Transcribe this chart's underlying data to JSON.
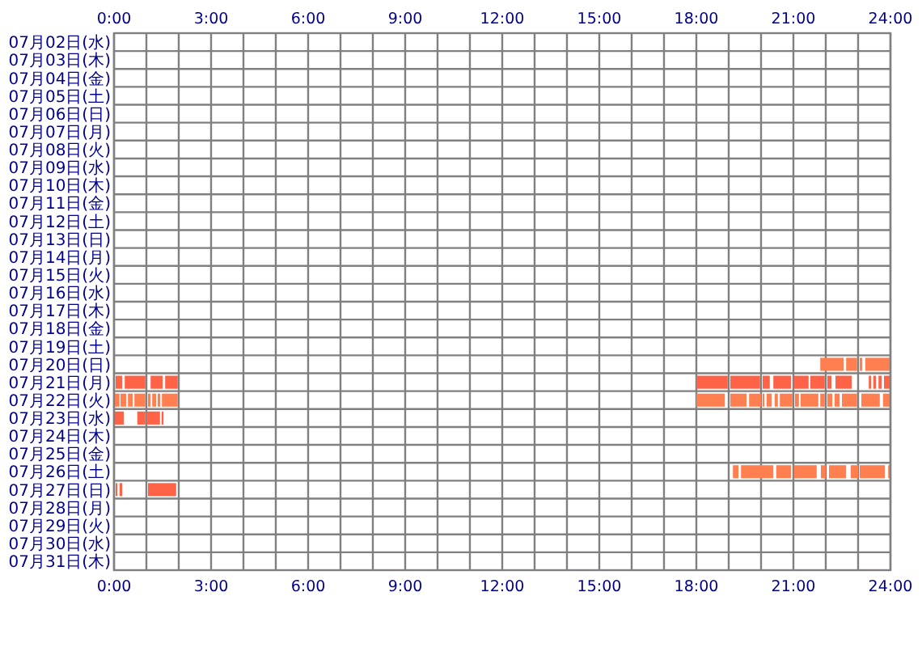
{
  "chart_data": {
    "type": "bar",
    "orientation": "horizontal",
    "grid": true,
    "categories": [
      "07月02日(水)",
      "07月03日(木)",
      "07月04日(金)",
      "07月05日(土)",
      "07月06日(日)",
      "07月07日(月)",
      "07月08日(火)",
      "07月09日(水)",
      "07月10日(木)",
      "07月11日(金)",
      "07月12日(土)",
      "07月13日(日)",
      "07月14日(月)",
      "07月15日(火)",
      "07月16日(水)",
      "07月17日(木)",
      "07月18日(金)",
      "07月19日(土)",
      "07月20日(日)",
      "07月21日(月)",
      "07月22日(火)",
      "07月23日(水)",
      "07月24日(木)",
      "07月25日(金)",
      "07月26日(土)",
      "07月27日(日)",
      "07月28日(月)",
      "07月29日(火)",
      "07月30日(水)",
      "07月31日(木)"
    ],
    "xlim": [
      0,
      24
    ],
    "xticks": [
      {
        "value": 0,
        "label": "0:00"
      },
      {
        "value": 1,
        "label": null
      },
      {
        "value": 2,
        "label": null
      },
      {
        "value": 3,
        "label": "3:00"
      },
      {
        "value": 4,
        "label": null
      },
      {
        "value": 5,
        "label": null
      },
      {
        "value": 6,
        "label": "6:00"
      },
      {
        "value": 7,
        "label": null
      },
      {
        "value": 8,
        "label": null
      },
      {
        "value": 9,
        "label": "9:00"
      },
      {
        "value": 10,
        "label": null
      },
      {
        "value": 11,
        "label": null
      },
      {
        "value": 12,
        "label": "12:00"
      },
      {
        "value": 13,
        "label": null
      },
      {
        "value": 14,
        "label": null
      },
      {
        "value": 15,
        "label": "15:00"
      },
      {
        "value": 16,
        "label": null
      },
      {
        "value": 17,
        "label": null
      },
      {
        "value": 18,
        "label": "18:00"
      },
      {
        "value": 19,
        "label": null
      },
      {
        "value": 20,
        "label": null
      },
      {
        "value": 21,
        "label": "21:00"
      },
      {
        "value": 22,
        "label": null
      },
      {
        "value": 23,
        "label": null
      },
      {
        "value": 24,
        "label": "24:00"
      }
    ],
    "x2lim": [
      0,
      24
    ],
    "x2ticks": [
      {
        "value": 0,
        "label": "0:00"
      },
      {
        "value": 3,
        "label": "3:00"
      },
      {
        "value": 6,
        "label": "6:00"
      },
      {
        "value": 9,
        "label": "9:00"
      },
      {
        "value": 12,
        "label": "12:00"
      },
      {
        "value": 15,
        "label": "15:00"
      },
      {
        "value": 18,
        "label": "18:00"
      },
      {
        "value": 21,
        "label": "21:00"
      },
      {
        "value": 24,
        "label": "24:00"
      }
    ],
    "series": [
      {
        "base": [
          null,
          null,
          null,
          null,
          null,
          null,
          null,
          null,
          null,
          null,
          null,
          null,
          null,
          null,
          null,
          null,
          null,
          null,
          21.83,
          0.05,
          0,
          0.02,
          null,
          null,
          19.13,
          0.05,
          null,
          null,
          null,
          null
        ],
        "values": [
          null,
          null,
          null,
          null,
          null,
          null,
          null,
          null,
          null,
          null,
          null,
          null,
          null,
          null,
          null,
          null,
          null,
          null,
          0.72,
          0.2,
          0.17,
          0.28,
          null,
          null,
          0.17,
          0.05,
          null,
          null,
          null,
          null
        ],
        "colors": [
          null,
          null,
          null,
          null,
          null,
          null,
          null,
          null,
          null,
          null,
          null,
          null,
          null,
          null,
          null,
          null,
          null,
          null,
          "#ff7f50",
          "#ff6347",
          "#ff7f50",
          "#ff6347",
          null,
          null,
          "#ff7f50",
          "#ff6347",
          null,
          null,
          null,
          null
        ]
      },
      {
        "base": [
          null,
          null,
          null,
          null,
          null,
          null,
          null,
          null,
          null,
          null,
          null,
          null,
          null,
          null,
          null,
          null,
          null,
          null,
          22.63,
          0.33,
          0.2,
          0.72,
          null,
          null,
          19.38,
          0.17,
          null,
          null,
          null,
          null
        ],
        "values": [
          null,
          null,
          null,
          null,
          null,
          null,
          null,
          null,
          null,
          null,
          null,
          null,
          null,
          null,
          null,
          null,
          null,
          null,
          0.34,
          0.64,
          0.18,
          0.25,
          null,
          null,
          1.0,
          0.08,
          null,
          null,
          null,
          null
        ],
        "colors": [
          null,
          null,
          null,
          null,
          null,
          null,
          null,
          null,
          null,
          null,
          null,
          null,
          null,
          null,
          null,
          null,
          null,
          null,
          "#ff7f50",
          "#ff6347",
          "#ff7f50",
          "#ff6347",
          null,
          null,
          "#ff7f50",
          "#ff6347",
          null,
          null,
          null,
          null
        ]
      },
      {
        "base": [
          null,
          null,
          null,
          null,
          null,
          null,
          null,
          null,
          null,
          null,
          null,
          null,
          null,
          null,
          null,
          null,
          null,
          null,
          23.05,
          1.13,
          0.43,
          1.0,
          null,
          null,
          20.47,
          1.05,
          null,
          null,
          null,
          null
        ],
        "values": [
          null,
          null,
          null,
          null,
          null,
          null,
          null,
          null,
          null,
          null,
          null,
          null,
          null,
          null,
          null,
          null,
          null,
          null,
          0.08,
          0.37,
          0.15,
          0.42,
          null,
          null,
          0.46,
          0.87,
          null,
          null,
          null,
          null
        ],
        "colors": [
          null,
          null,
          null,
          null,
          null,
          null,
          null,
          null,
          null,
          null,
          null,
          null,
          null,
          null,
          null,
          null,
          null,
          null,
          "#ff7f50",
          "#ff6347",
          "#ff7f50",
          "#ff6347",
          null,
          null,
          "#ff7f50",
          "#ff6347",
          null,
          null,
          null,
          null
        ]
      },
      {
        "base": [
          null,
          null,
          null,
          null,
          null,
          null,
          null,
          null,
          null,
          null,
          null,
          null,
          null,
          null,
          null,
          null,
          null,
          null,
          23.22,
          1.58,
          0.63,
          1.47,
          null,
          null,
          21.02,
          null,
          null,
          null,
          null,
          null
        ],
        "values": [
          null,
          null,
          null,
          null,
          null,
          null,
          null,
          null,
          null,
          null,
          null,
          null,
          null,
          null,
          null,
          null,
          null,
          null,
          0.78,
          0.39,
          0.34,
          0.06,
          null,
          null,
          0.7,
          null,
          null,
          null,
          null,
          null
        ],
        "colors": [
          null,
          null,
          null,
          null,
          null,
          null,
          null,
          null,
          null,
          null,
          null,
          null,
          null,
          null,
          null,
          null,
          null,
          null,
          "#ff7f50",
          "#ff6347",
          "#ff7f50",
          "#ff6347",
          null,
          null,
          "#ff7f50",
          null,
          null,
          null,
          null,
          null
        ]
      },
      {
        "base": [
          null,
          null,
          null,
          null,
          null,
          null,
          null,
          null,
          null,
          null,
          null,
          null,
          null,
          null,
          null,
          null,
          null,
          null,
          null,
          18,
          1.05,
          null,
          null,
          null,
          21.85,
          null,
          null,
          null,
          null,
          null
        ],
        "values": [
          null,
          null,
          null,
          null,
          null,
          null,
          null,
          null,
          null,
          null,
          null,
          null,
          null,
          null,
          null,
          null,
          null,
          null,
          null,
          0.97,
          0.08,
          null,
          null,
          null,
          0.15,
          null,
          null,
          null,
          null,
          null
        ],
        "colors": [
          null,
          null,
          null,
          null,
          null,
          null,
          null,
          null,
          null,
          null,
          null,
          null,
          null,
          null,
          null,
          null,
          null,
          null,
          null,
          "#ff6347",
          "#ff7f50",
          null,
          null,
          null,
          "#ff7f50",
          null,
          null,
          null,
          null,
          null
        ]
      },
      {
        "base": [
          null,
          null,
          null,
          null,
          null,
          null,
          null,
          null,
          null,
          null,
          null,
          null,
          null,
          null,
          null,
          null,
          null,
          null,
          null,
          19.05,
          1.18,
          null,
          null,
          null,
          22.1,
          null,
          null,
          null,
          null,
          null
        ],
        "values": [
          null,
          null,
          null,
          null,
          null,
          null,
          null,
          null,
          null,
          null,
          null,
          null,
          null,
          null,
          null,
          null,
          null,
          null,
          null,
          0.92,
          0.12,
          null,
          null,
          null,
          0.53,
          null,
          null,
          null,
          null,
          null
        ],
        "colors": [
          null,
          null,
          null,
          null,
          null,
          null,
          null,
          null,
          null,
          null,
          null,
          null,
          null,
          null,
          null,
          null,
          null,
          null,
          null,
          "#ff6347",
          "#ff7f50",
          null,
          null,
          null,
          "#ff7f50",
          null,
          null,
          null,
          null,
          null
        ]
      },
      {
        "base": [
          null,
          null,
          null,
          null,
          null,
          null,
          null,
          null,
          null,
          null,
          null,
          null,
          null,
          null,
          null,
          null,
          null,
          null,
          null,
          20.05,
          1.35,
          null,
          null,
          null,
          22.77,
          null,
          null,
          null,
          null,
          null
        ],
        "values": [
          null,
          null,
          null,
          null,
          null,
          null,
          null,
          null,
          null,
          null,
          null,
          null,
          null,
          null,
          null,
          null,
          null,
          null,
          null,
          0.22,
          0.08,
          null,
          null,
          null,
          0.23,
          null,
          null,
          null,
          null,
          null
        ],
        "colors": [
          null,
          null,
          null,
          null,
          null,
          null,
          null,
          null,
          null,
          null,
          null,
          null,
          null,
          null,
          null,
          null,
          null,
          null,
          null,
          "#ff6347",
          "#ff7f50",
          null,
          null,
          null,
          "#ff7f50",
          null,
          null,
          null,
          null,
          null
        ]
      },
      {
        "base": [
          null,
          null,
          null,
          null,
          null,
          null,
          null,
          null,
          null,
          null,
          null,
          null,
          null,
          null,
          null,
          null,
          null,
          null,
          null,
          20.38,
          1.48,
          null,
          null,
          null,
          23.05,
          null,
          null,
          null,
          null,
          null
        ],
        "values": [
          null,
          null,
          null,
          null,
          null,
          null,
          null,
          null,
          null,
          null,
          null,
          null,
          null,
          null,
          null,
          null,
          null,
          null,
          null,
          0.55,
          0.49,
          null,
          null,
          null,
          0.78,
          null,
          null,
          null,
          null,
          null
        ],
        "colors": [
          null,
          null,
          null,
          null,
          null,
          null,
          null,
          null,
          null,
          null,
          null,
          null,
          null,
          null,
          null,
          null,
          null,
          null,
          null,
          "#ff6347",
          "#ff7f50",
          null,
          null,
          null,
          "#ff7f50",
          null,
          null,
          null,
          null,
          null
        ]
      },
      {
        "base": [
          null,
          null,
          null,
          null,
          null,
          null,
          null,
          null,
          null,
          null,
          null,
          null,
          null,
          null,
          null,
          null,
          null,
          null,
          null,
          21.02,
          18,
          null,
          null,
          null,
          23.93,
          null,
          null,
          null,
          null,
          null
        ],
        "values": [
          null,
          null,
          null,
          null,
          null,
          null,
          null,
          null,
          null,
          null,
          null,
          null,
          null,
          null,
          null,
          null,
          null,
          null,
          null,
          0.45,
          0.88,
          null,
          null,
          null,
          0.07,
          null,
          null,
          null,
          null,
          null
        ],
        "colors": [
          null,
          null,
          null,
          null,
          null,
          null,
          null,
          null,
          null,
          null,
          null,
          null,
          null,
          null,
          null,
          null,
          null,
          null,
          null,
          "#ff6347",
          "#ff7f50",
          null,
          null,
          null,
          "#ff7f50",
          null,
          null,
          null,
          null,
          null
        ]
      },
      {
        "base": [
          null,
          null,
          null,
          null,
          null,
          null,
          null,
          null,
          null,
          null,
          null,
          null,
          null,
          null,
          null,
          null,
          null,
          null,
          null,
          21.52,
          19.05,
          null,
          null,
          null,
          null,
          null,
          null,
          null,
          null,
          null
        ],
        "values": [
          null,
          null,
          null,
          null,
          null,
          null,
          null,
          null,
          null,
          null,
          null,
          null,
          null,
          null,
          null,
          null,
          null,
          null,
          null,
          0.45,
          0.5,
          null,
          null,
          null,
          null,
          null,
          null,
          null,
          null,
          null
        ],
        "colors": [
          null,
          null,
          null,
          null,
          null,
          null,
          null,
          null,
          null,
          null,
          null,
          null,
          null,
          null,
          null,
          null,
          null,
          null,
          null,
          "#ff6347",
          "#ff7f50",
          null,
          null,
          null,
          null,
          null,
          null,
          null,
          null,
          null
        ]
      },
      {
        "base": [
          null,
          null,
          null,
          null,
          null,
          null,
          null,
          null,
          null,
          null,
          null,
          null,
          null,
          null,
          null,
          null,
          null,
          null,
          null,
          22.05,
          19.63,
          null,
          null,
          null,
          null,
          null,
          null,
          null,
          null,
          null
        ],
        "values": [
          null,
          null,
          null,
          null,
          null,
          null,
          null,
          null,
          null,
          null,
          null,
          null,
          null,
          null,
          null,
          null,
          null,
          null,
          null,
          0.13,
          0.37,
          null,
          null,
          null,
          null,
          null,
          null,
          null,
          null,
          null
        ],
        "colors": [
          null,
          null,
          null,
          null,
          null,
          null,
          null,
          null,
          null,
          null,
          null,
          null,
          null,
          null,
          null,
          null,
          null,
          null,
          null,
          "#ff6347",
          "#ff7f50",
          null,
          null,
          null,
          null,
          null,
          null,
          null,
          null,
          null
        ]
      },
      {
        "base": [
          null,
          null,
          null,
          null,
          null,
          null,
          null,
          null,
          null,
          null,
          null,
          null,
          null,
          null,
          null,
          null,
          null,
          null,
          null,
          22.3,
          20.05,
          null,
          null,
          null,
          null,
          null,
          null,
          null,
          null,
          null
        ],
        "values": [
          null,
          null,
          null,
          null,
          null,
          null,
          null,
          null,
          null,
          null,
          null,
          null,
          null,
          null,
          null,
          null,
          null,
          null,
          null,
          0.5,
          0.05,
          null,
          null,
          null,
          null,
          null,
          null,
          null,
          null,
          null
        ],
        "colors": [
          null,
          null,
          null,
          null,
          null,
          null,
          null,
          null,
          null,
          null,
          null,
          null,
          null,
          null,
          null,
          null,
          null,
          null,
          null,
          "#ff6347",
          "#ff7f50",
          null,
          null,
          null,
          null,
          null,
          null,
          null,
          null,
          null
        ]
      },
      {
        "base": [
          null,
          null,
          null,
          null,
          null,
          null,
          null,
          null,
          null,
          null,
          null,
          null,
          null,
          null,
          null,
          null,
          null,
          null,
          null,
          23.33,
          20.17,
          null,
          null,
          null,
          null,
          null,
          null,
          null,
          null,
          null
        ],
        "values": [
          null,
          null,
          null,
          null,
          null,
          null,
          null,
          null,
          null,
          null,
          null,
          null,
          null,
          null,
          null,
          null,
          null,
          null,
          null,
          0.07,
          0.16,
          null,
          null,
          null,
          null,
          null,
          null,
          null,
          null,
          null
        ],
        "colors": [
          null,
          null,
          null,
          null,
          null,
          null,
          null,
          null,
          null,
          null,
          null,
          null,
          null,
          null,
          null,
          null,
          null,
          null,
          null,
          "#ff6347",
          "#ff7f50",
          null,
          null,
          null,
          null,
          null,
          null,
          null,
          null,
          null
        ]
      },
      {
        "base": [
          null,
          null,
          null,
          null,
          null,
          null,
          null,
          null,
          null,
          null,
          null,
          null,
          null,
          null,
          null,
          null,
          null,
          null,
          null,
          23.47,
          20.42,
          null,
          null,
          null,
          null,
          null,
          null,
          null,
          null,
          null
        ],
        "values": [
          null,
          null,
          null,
          null,
          null,
          null,
          null,
          null,
          null,
          null,
          null,
          null,
          null,
          null,
          null,
          null,
          null,
          null,
          null,
          0.08,
          0.1,
          null,
          null,
          null,
          null,
          null,
          null,
          null,
          null,
          null
        ],
        "colors": [
          null,
          null,
          null,
          null,
          null,
          null,
          null,
          null,
          null,
          null,
          null,
          null,
          null,
          null,
          null,
          null,
          null,
          null,
          null,
          "#ff6347",
          "#ff7f50",
          null,
          null,
          null,
          null,
          null,
          null,
          null,
          null,
          null
        ]
      },
      {
        "base": [
          null,
          null,
          null,
          null,
          null,
          null,
          null,
          null,
          null,
          null,
          null,
          null,
          null,
          null,
          null,
          null,
          null,
          null,
          null,
          23.63,
          20.58,
          null,
          null,
          null,
          null,
          null,
          null,
          null,
          null,
          null
        ],
        "values": [
          null,
          null,
          null,
          null,
          null,
          null,
          null,
          null,
          null,
          null,
          null,
          null,
          null,
          null,
          null,
          null,
          null,
          null,
          null,
          0.1,
          0.39,
          null,
          null,
          null,
          null,
          null,
          null,
          null,
          null,
          null
        ],
        "colors": [
          null,
          null,
          null,
          null,
          null,
          null,
          null,
          null,
          null,
          null,
          null,
          null,
          null,
          null,
          null,
          null,
          null,
          null,
          null,
          "#ff6347",
          "#ff7f50",
          null,
          null,
          null,
          null,
          null,
          null,
          null,
          null,
          null
        ]
      },
      {
        "base": [
          null,
          null,
          null,
          null,
          null,
          null,
          null,
          null,
          null,
          null,
          null,
          null,
          null,
          null,
          null,
          null,
          null,
          null,
          null,
          23.8,
          21.05,
          null,
          null,
          null,
          null,
          null,
          null,
          null,
          null,
          null
        ],
        "values": [
          null,
          null,
          null,
          null,
          null,
          null,
          null,
          null,
          null,
          null,
          null,
          null,
          null,
          null,
          null,
          null,
          null,
          null,
          null,
          0.2,
          0.12,
          null,
          null,
          null,
          null,
          null,
          null,
          null,
          null,
          null
        ],
        "colors": [
          null,
          null,
          null,
          null,
          null,
          null,
          null,
          null,
          null,
          null,
          null,
          null,
          null,
          null,
          null,
          null,
          null,
          null,
          null,
          "#ff6347",
          "#ff7f50",
          null,
          null,
          null,
          null,
          null,
          null,
          null,
          null,
          null
        ]
      },
      {
        "base": [
          null,
          null,
          null,
          null,
          null,
          null,
          null,
          null,
          null,
          null,
          null,
          null,
          null,
          null,
          null,
          null,
          null,
          null,
          null,
          null,
          21.22,
          null,
          null,
          null,
          null,
          null,
          null,
          null,
          null,
          null
        ],
        "values": [
          null,
          null,
          null,
          null,
          null,
          null,
          null,
          null,
          null,
          null,
          null,
          null,
          null,
          null,
          null,
          null,
          null,
          null,
          null,
          null,
          0.55,
          null,
          null,
          null,
          null,
          null,
          null,
          null,
          null,
          null
        ],
        "colors": [
          null,
          null,
          null,
          null,
          null,
          null,
          null,
          null,
          null,
          null,
          null,
          null,
          null,
          null,
          null,
          null,
          null,
          null,
          null,
          null,
          "#ff7f50",
          null,
          null,
          null,
          null,
          null,
          null,
          null,
          null,
          null
        ]
      },
      {
        "base": [
          null,
          null,
          null,
          null,
          null,
          null,
          null,
          null,
          null,
          null,
          null,
          null,
          null,
          null,
          null,
          null,
          null,
          null,
          null,
          null,
          21.83,
          null,
          null,
          null,
          null,
          null,
          null,
          null,
          null,
          null
        ],
        "values": [
          null,
          null,
          null,
          null,
          null,
          null,
          null,
          null,
          null,
          null,
          null,
          null,
          null,
          null,
          null,
          null,
          null,
          null,
          null,
          null,
          0.14,
          null,
          null,
          null,
          null,
          null,
          null,
          null,
          null,
          null
        ],
        "colors": [
          null,
          null,
          null,
          null,
          null,
          null,
          null,
          null,
          null,
          null,
          null,
          null,
          null,
          null,
          null,
          null,
          null,
          null,
          null,
          null,
          "#ff7f50",
          null,
          null,
          null,
          null,
          null,
          null,
          null,
          null,
          null
        ]
      },
      {
        "base": [
          null,
          null,
          null,
          null,
          null,
          null,
          null,
          null,
          null,
          null,
          null,
          null,
          null,
          null,
          null,
          null,
          null,
          null,
          null,
          null,
          22.05,
          null,
          null,
          null,
          null,
          null,
          null,
          null,
          null,
          null
        ],
        "values": [
          null,
          null,
          null,
          null,
          null,
          null,
          null,
          null,
          null,
          null,
          null,
          null,
          null,
          null,
          null,
          null,
          null,
          null,
          null,
          null,
          0.15,
          null,
          null,
          null,
          null,
          null,
          null,
          null,
          null,
          null
        ],
        "colors": [
          null,
          null,
          null,
          null,
          null,
          null,
          null,
          null,
          null,
          null,
          null,
          null,
          null,
          null,
          null,
          null,
          null,
          null,
          null,
          null,
          "#ff7f50",
          null,
          null,
          null,
          null,
          null,
          null,
          null,
          null,
          null
        ]
      },
      {
        "base": [
          null,
          null,
          null,
          null,
          null,
          null,
          null,
          null,
          null,
          null,
          null,
          null,
          null,
          null,
          null,
          null,
          null,
          null,
          null,
          null,
          22.27,
          null,
          null,
          null,
          null,
          null,
          null,
          null,
          null,
          null
        ],
        "values": [
          null,
          null,
          null,
          null,
          null,
          null,
          null,
          null,
          null,
          null,
          null,
          null,
          null,
          null,
          null,
          null,
          null,
          null,
          null,
          null,
          0.16,
          null,
          null,
          null,
          null,
          null,
          null,
          null,
          null,
          null
        ],
        "colors": [
          null,
          null,
          null,
          null,
          null,
          null,
          null,
          null,
          null,
          null,
          null,
          null,
          null,
          null,
          null,
          null,
          null,
          null,
          null,
          null,
          "#ff7f50",
          null,
          null,
          null,
          null,
          null,
          null,
          null,
          null,
          null
        ]
      },
      {
        "base": [
          null,
          null,
          null,
          null,
          null,
          null,
          null,
          null,
          null,
          null,
          null,
          null,
          null,
          null,
          null,
          null,
          null,
          null,
          null,
          null,
          22.5,
          null,
          null,
          null,
          null,
          null,
          null,
          null,
          null,
          null
        ],
        "values": [
          null,
          null,
          null,
          null,
          null,
          null,
          null,
          null,
          null,
          null,
          null,
          null,
          null,
          null,
          null,
          null,
          null,
          null,
          null,
          null,
          0.47,
          null,
          null,
          null,
          null,
          null,
          null,
          null,
          null,
          null
        ],
        "colors": [
          null,
          null,
          null,
          null,
          null,
          null,
          null,
          null,
          null,
          null,
          null,
          null,
          null,
          null,
          null,
          null,
          null,
          null,
          null,
          null,
          "#ff7f50",
          null,
          null,
          null,
          null,
          null,
          null,
          null,
          null,
          null
        ]
      },
      {
        "base": [
          null,
          null,
          null,
          null,
          null,
          null,
          null,
          null,
          null,
          null,
          null,
          null,
          null,
          null,
          null,
          null,
          null,
          null,
          null,
          null,
          23.1,
          null,
          null,
          null,
          null,
          null,
          null,
          null,
          null,
          null
        ],
        "values": [
          null,
          null,
          null,
          null,
          null,
          null,
          null,
          null,
          null,
          null,
          null,
          null,
          null,
          null,
          null,
          null,
          null,
          null,
          null,
          null,
          0.57,
          null,
          null,
          null,
          null,
          null,
          null,
          null,
          null,
          null
        ],
        "colors": [
          null,
          null,
          null,
          null,
          null,
          null,
          null,
          null,
          null,
          null,
          null,
          null,
          null,
          null,
          null,
          null,
          null,
          null,
          null,
          null,
          "#ff7f50",
          null,
          null,
          null,
          null,
          null,
          null,
          null,
          null,
          null
        ]
      },
      {
        "base": [
          null,
          null,
          null,
          null,
          null,
          null,
          null,
          null,
          null,
          null,
          null,
          null,
          null,
          null,
          null,
          null,
          null,
          null,
          null,
          null,
          23.77,
          null,
          null,
          null,
          null,
          null,
          null,
          null,
          null,
          null
        ],
        "values": [
          null,
          null,
          null,
          null,
          null,
          null,
          null,
          null,
          null,
          null,
          null,
          null,
          null,
          null,
          null,
          null,
          null,
          null,
          null,
          null,
          0.23,
          null,
          null,
          null,
          null,
          null,
          null,
          null,
          null,
          null
        ],
        "colors": [
          null,
          null,
          null,
          null,
          null,
          null,
          null,
          null,
          null,
          null,
          null,
          null,
          null,
          null,
          null,
          null,
          null,
          null,
          null,
          null,
          "#ff7f50",
          null,
          null,
          null,
          null,
          null,
          null,
          null,
          null,
          null
        ]
      }
    ]
  }
}
